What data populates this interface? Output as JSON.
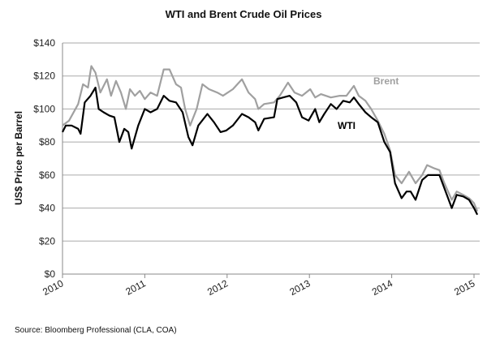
{
  "chart_data": {
    "type": "line",
    "title": "WTI and Brent Crude Oil Prices",
    "xlabel": "",
    "ylabel": "US$ Price per Barrel",
    "xlim": [
      2010,
      2015.05
    ],
    "ylim": [
      0,
      140
    ],
    "grid": true,
    "x_ticks": [
      "2010",
      "2011",
      "2012",
      "2013",
      "2014",
      "2015"
    ],
    "y_ticks": [
      "$0",
      "$20",
      "$40",
      "$60",
      "$80",
      "$100",
      "$120",
      "$140"
    ],
    "source": "Source: Bloomberg Professional (CLA, COA)",
    "series": [
      {
        "name": "Brent",
        "label": "Brent",
        "color": "#a0a0a0",
        "x": [
          2010.0,
          2010.08,
          2010.19,
          2010.25,
          2010.31,
          2010.35,
          2010.4,
          2010.46,
          2010.54,
          2010.59,
          2010.65,
          2010.71,
          2010.77,
          2010.82,
          2010.88,
          2010.94,
          2011.0,
          2011.07,
          2011.15,
          2011.23,
          2011.3,
          2011.38,
          2011.44,
          2011.49,
          2011.55,
          2011.63,
          2011.7,
          2011.78,
          2011.88,
          2011.95,
          2012.07,
          2012.18,
          2012.26,
          2012.34,
          2012.38,
          2012.45,
          2012.57,
          2012.64,
          2012.74,
          2012.82,
          2012.91,
          2013.01,
          2013.07,
          2013.14,
          2013.26,
          2013.37,
          2013.45,
          2013.54,
          2013.6,
          2013.68,
          2013.75,
          2013.83,
          2013.91,
          2013.98,
          2014.04,
          2014.12,
          2014.21,
          2014.29,
          2014.37,
          2014.43,
          2014.52,
          2014.58,
          2014.64,
          2014.73,
          2014.79,
          2014.87,
          2014.94,
          2015.0,
          2015.04
        ],
        "values": [
          90,
          93,
          103,
          115,
          113,
          126,
          122,
          110,
          118,
          108,
          117,
          110,
          100,
          112,
          108,
          111,
          106,
          110,
          108,
          124,
          124,
          115,
          113,
          100,
          90,
          100,
          115,
          112,
          110,
          108,
          112,
          118,
          110,
          106,
          100,
          103,
          104,
          108,
          116,
          110,
          108,
          112,
          107,
          109,
          107,
          108,
          108,
          114,
          108,
          105,
          100,
          93,
          85,
          75,
          60,
          55,
          62,
          55,
          60,
          66,
          64,
          63,
          55,
          45,
          50,
          48,
          46,
          43,
          38
        ]
      },
      {
        "name": "WTI",
        "label": "WTI",
        "color": "#000000",
        "x": [
          2010.0,
          2010.04,
          2010.11,
          2010.19,
          2010.22,
          2010.27,
          2010.34,
          2010.4,
          2010.44,
          2010.5,
          2010.57,
          2010.63,
          2010.69,
          2010.75,
          2010.8,
          2010.84,
          2010.92,
          2011.0,
          2011.07,
          2011.15,
          2011.23,
          2011.3,
          2011.38,
          2011.46,
          2011.53,
          2011.58,
          2011.65,
          2011.76,
          2011.84,
          2011.92,
          2011.99,
          2012.07,
          2012.18,
          2012.26,
          2012.34,
          2012.38,
          2012.45,
          2012.57,
          2012.61,
          2012.68,
          2012.76,
          2012.84,
          2012.91,
          2012.99,
          2013.07,
          2013.12,
          2013.18,
          2013.26,
          2013.33,
          2013.41,
          2013.49,
          2013.54,
          2013.6,
          2013.68,
          2013.75,
          2013.83,
          2013.91,
          2013.98,
          2014.04,
          2014.12,
          2014.18,
          2014.23,
          2014.29,
          2014.37,
          2014.44,
          2014.52,
          2014.58,
          2014.64,
          2014.73,
          2014.79,
          2014.87,
          2014.94,
          2015.0,
          2015.04
        ],
        "values": [
          86,
          90,
          90,
          88,
          85,
          104,
          108,
          113,
          100,
          98,
          96,
          95,
          80,
          88,
          86,
          76,
          90,
          100,
          98,
          100,
          108,
          105,
          104,
          98,
          83,
          78,
          90,
          97,
          92,
          86,
          87,
          90,
          97,
          95,
          92,
          87,
          94,
          95,
          106,
          107,
          108,
          104,
          95,
          93,
          100,
          92,
          97,
          103,
          100,
          105,
          104,
          107,
          103,
          98,
          95,
          92,
          80,
          74,
          55,
          46,
          50,
          50,
          45,
          57,
          60,
          60,
          60,
          52,
          40,
          48,
          47,
          45,
          40,
          36
        ]
      }
    ]
  }
}
